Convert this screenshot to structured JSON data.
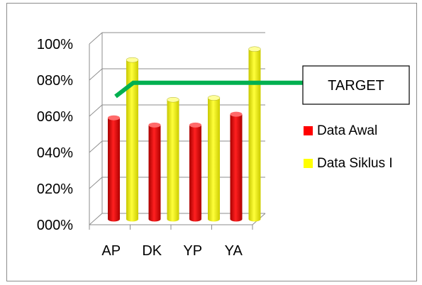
{
  "chart_data": {
    "type": "bar",
    "categories": [
      "AP",
      "DK",
      "YP",
      "YA"
    ],
    "series": [
      {
        "name": "Data Awal",
        "color": "#ff0000",
        "values": [
          56,
          52,
          52,
          58
        ]
      },
      {
        "name": "Data Siklus I",
        "color": "#ffff00",
        "values": [
          88,
          66,
          67,
          94
        ]
      }
    ],
    "ylim": [
      0,
      100
    ],
    "yticks": [
      0,
      20,
      40,
      60,
      80,
      100
    ],
    "ytick_labels": [
      "000%",
      "020%",
      "040%",
      "060%",
      "080%",
      "100%"
    ],
    "grid": true,
    "legend_position": "right",
    "target": {
      "label": "TARGET",
      "value": 75,
      "color": "#00b050"
    }
  }
}
